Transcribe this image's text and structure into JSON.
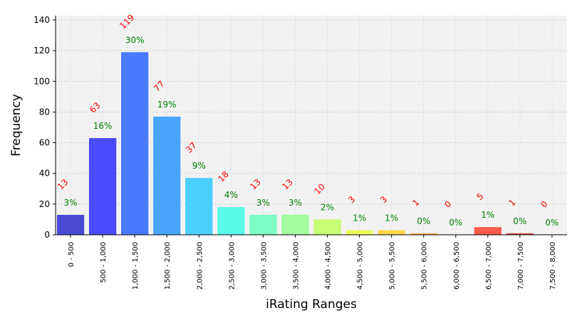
{
  "chart_data": {
    "type": "bar",
    "title": "",
    "xlabel": "iRating Ranges",
    "ylabel": "Frequency",
    "ylim": [
      0,
      142.8
    ],
    "yticks": [
      0,
      20,
      40,
      60,
      80,
      100,
      120,
      140
    ],
    "grid": true,
    "categories": [
      "0 - 500",
      "500 - 1,000",
      "1,000 - 1,500",
      "1,500 - 2,000",
      "2,000 - 2,500",
      "2,500 - 3,000",
      "3,000 - 3,500",
      "3,500 - 4,000",
      "4,000 - 4,500",
      "4,500 - 5,000",
      "5,000 - 5,500",
      "5,500 - 6,000",
      "6,000 - 6,500",
      "6,500 - 7,000",
      "7,000 - 7,500",
      "7,500 - 8,000"
    ],
    "values": [
      13,
      63,
      119,
      77,
      37,
      18,
      13,
      13,
      10,
      3,
      3,
      1,
      0,
      5,
      1,
      0
    ],
    "count_labels": [
      "13",
      "63",
      "119",
      "77",
      "37",
      "18",
      "13",
      "13",
      "10",
      "3",
      "3",
      "1",
      "0",
      "5",
      "1",
      "0"
    ],
    "percent_labels": [
      "3%",
      "16%",
      "30%",
      "19%",
      "9%",
      "4%",
      "3%",
      "3%",
      "2%",
      "1%",
      "1%",
      "0%",
      "0%",
      "1%",
      "0%",
      "0%"
    ],
    "colors": [
      "#4a4ad4",
      "#4a4aff",
      "#4a7aff",
      "#4aa5ff",
      "#4acfff",
      "#5afae8",
      "#7dfcc5",
      "#a2fca0",
      "#c8fc73",
      "#ecfc5a",
      "#fcd94a",
      "#fcae4a",
      "#fc844a",
      "#fc5a4a",
      "#d34a4a",
      "#a84a4a"
    ],
    "count_label_color": "#ff0000",
    "percent_label_color": "#008000",
    "plot_background": "#f2f2f2"
  }
}
